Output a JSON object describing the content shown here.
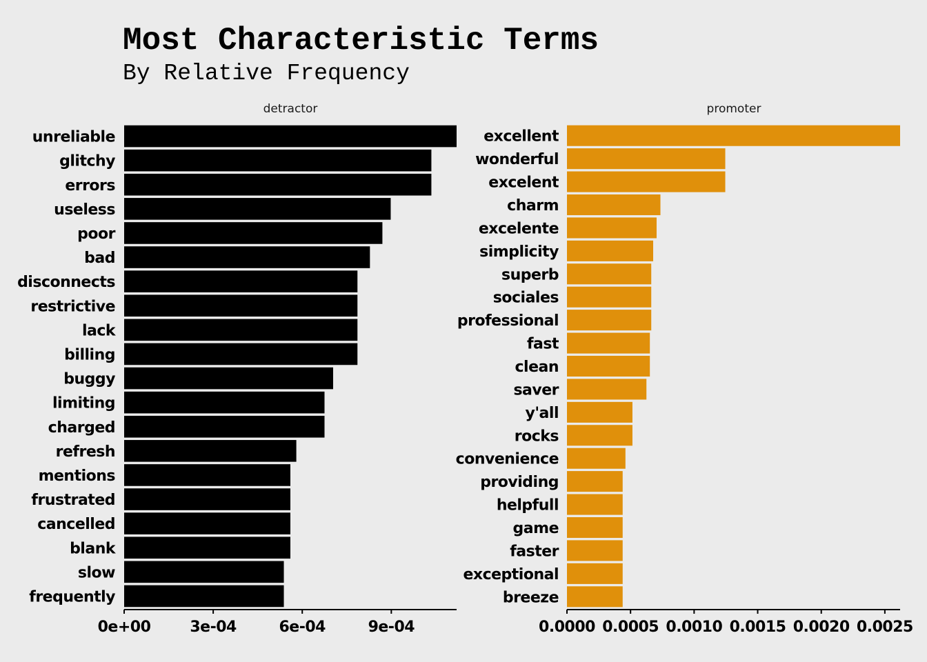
{
  "chart_data": {
    "type": "bar",
    "orientation": "horizontal",
    "title": "Most Characteristic Terms",
    "subtitle": "By Relative Frequency",
    "grid": false,
    "colors": {
      "background": "#ebebeb",
      "detractor": "#000000",
      "promoter": "#e0900b"
    },
    "facets": [
      {
        "name": "detractor",
        "color": "#000000",
        "xlim": [
          0,
          0.00112
        ],
        "ticks": [
          0,
          0.0003,
          0.0006,
          0.0009
        ],
        "tick_labels": [
          "0e+00",
          "3e-04",
          "6e-04",
          "9e-04"
        ],
        "categories": [
          "unreliable",
          "glitchy",
          "errors",
          "useless",
          "poor",
          "bad",
          "disconnects",
          "restrictive",
          "lack",
          "billing",
          "buggy",
          "limiting",
          "charged",
          "refresh",
          "mentions",
          "frustrated",
          "cancelled",
          "blank",
          "slow",
          "frequently"
        ],
        "values": [
          0.00112,
          0.001035,
          0.001035,
          0.000898,
          0.00087,
          0.000828,
          0.000786,
          0.000786,
          0.000786,
          0.000786,
          0.000704,
          0.000675,
          0.000675,
          0.00058,
          0.00056,
          0.00056,
          0.00056,
          0.00056,
          0.000538,
          0.000538
        ]
      },
      {
        "name": "promoter",
        "color": "#e0900b",
        "xlim": [
          0,
          0.00262
        ],
        "ticks": [
          0,
          0.0005,
          0.001,
          0.0015,
          0.002,
          0.0025
        ],
        "tick_labels": [
          "0.0000",
          "0.0005",
          "0.0010",
          "0.0015",
          "0.0020",
          "0.0025"
        ],
        "categories": [
          "excellent",
          "wonderful",
          "excelent",
          "charm",
          "excelente",
          "simplicity",
          "superb",
          "sociales",
          "professional",
          "fast",
          "clean",
          "saver",
          "y'all",
          "rocks",
          "convenience",
          "providing",
          "helpfull",
          "game",
          "faster",
          "exceptional",
          "breeze"
        ],
        "values": [
          0.00262,
          0.001245,
          0.001245,
          0.000735,
          0.000705,
          0.000678,
          0.000663,
          0.000663,
          0.000663,
          0.000652,
          0.000652,
          0.000625,
          0.000515,
          0.000515,
          0.00046,
          0.000438,
          0.000438,
          0.000438,
          0.000438,
          0.000438,
          0.000438
        ]
      }
    ]
  }
}
